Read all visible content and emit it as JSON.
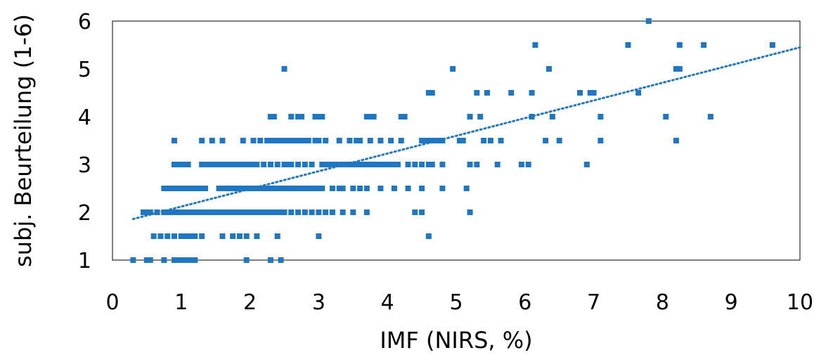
{
  "chart_data": {
    "type": "scatter",
    "title": "",
    "xlabel": "IMF (NIRS, %)",
    "ylabel": "subj. Beurteilung (1-6)",
    "xlim": [
      0,
      10
    ],
    "ylim": [
      1,
      6
    ],
    "xticks": [
      "0",
      "1",
      "2",
      "3",
      "4",
      "5",
      "6",
      "7",
      "8",
      "9",
      "10"
    ],
    "yticks": [
      "1",
      "2",
      "3",
      "4",
      "5",
      "6"
    ],
    "grid": false,
    "legend": "none",
    "colors": {
      "points": "#1f77c4",
      "trendline": "#1f77c4",
      "frame": "#000000"
    },
    "trendline": {
      "type": "linear",
      "style": "dotted",
      "x": [
        0.3,
        10
      ],
      "y": [
        1.86,
        5.45
      ]
    },
    "series": [
      {
        "points": [
          [
            0.3,
            1
          ],
          [
            0.5,
            1
          ],
          [
            0.55,
            1
          ],
          [
            0.75,
            1
          ],
          [
            0.9,
            1
          ],
          [
            0.95,
            1
          ],
          [
            1.0,
            1
          ],
          [
            1.05,
            1
          ],
          [
            1.1,
            1
          ],
          [
            1.15,
            1
          ],
          [
            1.2,
            1
          ],
          [
            1.95,
            1
          ],
          [
            2.3,
            1
          ],
          [
            2.45,
            1
          ],
          [
            0.6,
            1.5
          ],
          [
            0.7,
            1.5
          ],
          [
            0.8,
            1.5
          ],
          [
            0.9,
            1.5
          ],
          [
            1.0,
            1.5
          ],
          [
            1.05,
            1.5
          ],
          [
            1.1,
            1.5
          ],
          [
            1.15,
            1.5
          ],
          [
            1.2,
            1.5
          ],
          [
            1.3,
            1.5
          ],
          [
            1.6,
            1.5
          ],
          [
            1.75,
            1.5
          ],
          [
            1.85,
            1.5
          ],
          [
            1.95,
            1.5
          ],
          [
            2.1,
            1.5
          ],
          [
            2.4,
            1.5
          ],
          [
            3.0,
            1.5
          ],
          [
            4.6,
            1.5
          ],
          [
            0.45,
            2
          ],
          [
            0.5,
            2
          ],
          [
            0.55,
            2
          ],
          [
            0.65,
            2
          ],
          [
            0.75,
            2
          ],
          [
            0.8,
            2
          ],
          [
            0.85,
            2
          ],
          [
            0.9,
            2
          ],
          [
            0.95,
            2
          ],
          [
            1.0,
            2
          ],
          [
            1.05,
            2
          ],
          [
            1.1,
            2
          ],
          [
            1.15,
            2
          ],
          [
            1.2,
            2
          ],
          [
            1.25,
            2
          ],
          [
            1.3,
            2
          ],
          [
            1.35,
            2
          ],
          [
            1.4,
            2
          ],
          [
            1.45,
            2
          ],
          [
            1.5,
            2
          ],
          [
            1.55,
            2
          ],
          [
            1.6,
            2
          ],
          [
            1.65,
            2
          ],
          [
            1.7,
            2
          ],
          [
            1.75,
            2
          ],
          [
            1.8,
            2
          ],
          [
            1.85,
            2
          ],
          [
            1.9,
            2
          ],
          [
            1.95,
            2
          ],
          [
            2.0,
            2
          ],
          [
            2.05,
            2
          ],
          [
            2.1,
            2
          ],
          [
            2.15,
            2
          ],
          [
            2.2,
            2
          ],
          [
            2.25,
            2
          ],
          [
            2.3,
            2
          ],
          [
            2.35,
            2
          ],
          [
            2.4,
            2
          ],
          [
            2.45,
            2
          ],
          [
            2.5,
            2
          ],
          [
            2.6,
            2
          ],
          [
            2.7,
            2
          ],
          [
            2.8,
            2
          ],
          [
            2.9,
            2
          ],
          [
            3.0,
            2
          ],
          [
            3.1,
            2
          ],
          [
            3.2,
            2
          ],
          [
            3.35,
            2
          ],
          [
            3.5,
            2
          ],
          [
            3.7,
            2
          ],
          [
            4.4,
            2
          ],
          [
            4.5,
            2
          ],
          [
            5.2,
            2
          ],
          [
            0.75,
            2.5
          ],
          [
            0.8,
            2.5
          ],
          [
            0.85,
            2.5
          ],
          [
            0.9,
            2.5
          ],
          [
            0.95,
            2.5
          ],
          [
            1.0,
            2.5
          ],
          [
            1.05,
            2.5
          ],
          [
            1.1,
            2.5
          ],
          [
            1.15,
            2.5
          ],
          [
            1.2,
            2.5
          ],
          [
            1.25,
            2.5
          ],
          [
            1.3,
            2.5
          ],
          [
            1.35,
            2.5
          ],
          [
            1.55,
            2.5
          ],
          [
            1.6,
            2.5
          ],
          [
            1.65,
            2.5
          ],
          [
            1.7,
            2.5
          ],
          [
            1.75,
            2.5
          ],
          [
            1.8,
            2.5
          ],
          [
            1.85,
            2.5
          ],
          [
            1.9,
            2.5
          ],
          [
            1.95,
            2.5
          ],
          [
            2.0,
            2.5
          ],
          [
            2.05,
            2.5
          ],
          [
            2.1,
            2.5
          ],
          [
            2.15,
            2.5
          ],
          [
            2.2,
            2.5
          ],
          [
            2.25,
            2.5
          ],
          [
            2.3,
            2.5
          ],
          [
            2.35,
            2.5
          ],
          [
            2.4,
            2.5
          ],
          [
            2.45,
            2.5
          ],
          [
            2.5,
            2.5
          ],
          [
            2.55,
            2.5
          ],
          [
            2.6,
            2.5
          ],
          [
            2.65,
            2.5
          ],
          [
            2.7,
            2.5
          ],
          [
            2.75,
            2.5
          ],
          [
            2.8,
            2.5
          ],
          [
            2.85,
            2.5
          ],
          [
            2.9,
            2.5
          ],
          [
            2.95,
            2.5
          ],
          [
            3.0,
            2.5
          ],
          [
            3.05,
            2.5
          ],
          [
            3.2,
            2.5
          ],
          [
            3.3,
            2.5
          ],
          [
            3.35,
            2.5
          ],
          [
            3.5,
            2.5
          ],
          [
            3.6,
            2.5
          ],
          [
            3.7,
            2.5
          ],
          [
            3.9,
            2.5
          ],
          [
            4.1,
            2.5
          ],
          [
            4.3,
            2.5
          ],
          [
            4.5,
            2.5
          ],
          [
            4.8,
            2.5
          ],
          [
            5.15,
            2.5
          ],
          [
            0.9,
            3
          ],
          [
            0.95,
            3
          ],
          [
            1.0,
            3
          ],
          [
            1.05,
            3
          ],
          [
            1.1,
            3
          ],
          [
            1.3,
            3
          ],
          [
            1.35,
            3
          ],
          [
            1.4,
            3
          ],
          [
            1.45,
            3
          ],
          [
            1.5,
            3
          ],
          [
            1.55,
            3
          ],
          [
            1.6,
            3
          ],
          [
            1.65,
            3
          ],
          [
            1.7,
            3
          ],
          [
            1.75,
            3
          ],
          [
            1.8,
            3
          ],
          [
            1.85,
            3
          ],
          [
            1.9,
            3
          ],
          [
            1.95,
            3
          ],
          [
            2.0,
            3
          ],
          [
            2.05,
            3
          ],
          [
            2.1,
            3
          ],
          [
            2.2,
            3
          ],
          [
            2.3,
            3
          ],
          [
            2.4,
            3
          ],
          [
            2.5,
            3
          ],
          [
            2.55,
            3
          ],
          [
            2.6,
            3
          ],
          [
            2.7,
            3
          ],
          [
            2.8,
            3
          ],
          [
            2.9,
            3
          ],
          [
            3.05,
            3
          ],
          [
            3.1,
            3
          ],
          [
            3.15,
            3
          ],
          [
            3.2,
            3
          ],
          [
            3.25,
            3
          ],
          [
            3.3,
            3
          ],
          [
            3.35,
            3
          ],
          [
            3.4,
            3
          ],
          [
            3.45,
            3
          ],
          [
            3.5,
            3
          ],
          [
            3.55,
            3
          ],
          [
            3.6,
            3
          ],
          [
            3.65,
            3
          ],
          [
            3.7,
            3
          ],
          [
            3.75,
            3
          ],
          [
            3.8,
            3
          ],
          [
            3.85,
            3
          ],
          [
            3.9,
            3
          ],
          [
            3.95,
            3
          ],
          [
            4.0,
            3
          ],
          [
            4.05,
            3
          ],
          [
            4.1,
            3
          ],
          [
            4.15,
            3
          ],
          [
            4.3,
            3
          ],
          [
            4.4,
            3
          ],
          [
            4.5,
            3
          ],
          [
            4.6,
            3
          ],
          [
            4.65,
            3
          ],
          [
            4.8,
            3
          ],
          [
            5.2,
            3
          ],
          [
            5.3,
            3
          ],
          [
            5.6,
            3
          ],
          [
            5.95,
            3
          ],
          [
            6.05,
            3
          ],
          [
            6.9,
            3
          ],
          [
            0.9,
            3.5
          ],
          [
            1.3,
            3.5
          ],
          [
            1.45,
            3.5
          ],
          [
            1.6,
            3.5
          ],
          [
            1.9,
            3.5
          ],
          [
            2.05,
            3.5
          ],
          [
            2.15,
            3.5
          ],
          [
            2.25,
            3.5
          ],
          [
            2.3,
            3.5
          ],
          [
            2.35,
            3.5
          ],
          [
            2.4,
            3.5
          ],
          [
            2.45,
            3.5
          ],
          [
            2.5,
            3.5
          ],
          [
            2.55,
            3.5
          ],
          [
            2.6,
            3.5
          ],
          [
            2.65,
            3.5
          ],
          [
            2.7,
            3.5
          ],
          [
            2.75,
            3.5
          ],
          [
            2.8,
            3.5
          ],
          [
            2.85,
            3.5
          ],
          [
            2.95,
            3.5
          ],
          [
            3.0,
            3.5
          ],
          [
            3.1,
            3.5
          ],
          [
            3.3,
            3.5
          ],
          [
            3.45,
            3.5
          ],
          [
            3.55,
            3.5
          ],
          [
            3.6,
            3.5
          ],
          [
            3.75,
            3.5
          ],
          [
            3.9,
            3.5
          ],
          [
            4.05,
            3.5
          ],
          [
            4.2,
            3.5
          ],
          [
            4.5,
            3.5
          ],
          [
            4.55,
            3.5
          ],
          [
            4.6,
            3.5
          ],
          [
            4.65,
            3.5
          ],
          [
            4.7,
            3.5
          ],
          [
            4.75,
            3.5
          ],
          [
            4.8,
            3.5
          ],
          [
            5.05,
            3.5
          ],
          [
            5.1,
            3.5
          ],
          [
            5.4,
            3.5
          ],
          [
            5.5,
            3.5
          ],
          [
            5.65,
            3.5
          ],
          [
            6.3,
            3.5
          ],
          [
            6.5,
            3.5
          ],
          [
            7.1,
            3.5
          ],
          [
            8.2,
            3.5
          ],
          [
            2.3,
            4
          ],
          [
            2.35,
            4
          ],
          [
            2.6,
            4
          ],
          [
            2.7,
            4
          ],
          [
            2.75,
            4
          ],
          [
            2.95,
            4
          ],
          [
            3.0,
            4
          ],
          [
            3.05,
            4
          ],
          [
            3.7,
            4
          ],
          [
            3.75,
            4
          ],
          [
            3.8,
            4
          ],
          [
            4.2,
            4
          ],
          [
            4.25,
            4
          ],
          [
            5.2,
            4
          ],
          [
            5.35,
            4
          ],
          [
            6.1,
            4
          ],
          [
            6.4,
            4
          ],
          [
            7.1,
            4
          ],
          [
            8.05,
            4
          ],
          [
            8.7,
            4
          ],
          [
            4.6,
            4.5
          ],
          [
            4.65,
            4.5
          ],
          [
            5.3,
            4.5
          ],
          [
            5.45,
            4.5
          ],
          [
            5.8,
            4.5
          ],
          [
            6.1,
            4.5
          ],
          [
            6.8,
            4.5
          ],
          [
            6.95,
            4.5
          ],
          [
            7.0,
            4.5
          ],
          [
            7.65,
            4.5
          ],
          [
            2.5,
            5
          ],
          [
            4.95,
            5
          ],
          [
            6.35,
            5
          ],
          [
            8.2,
            5
          ],
          [
            8.25,
            5
          ],
          [
            6.15,
            5.5
          ],
          [
            7.5,
            5.5
          ],
          [
            8.25,
            5.5
          ],
          [
            8.6,
            5.5
          ],
          [
            9.6,
            5.5
          ],
          [
            7.8,
            6
          ]
        ]
      }
    ]
  }
}
